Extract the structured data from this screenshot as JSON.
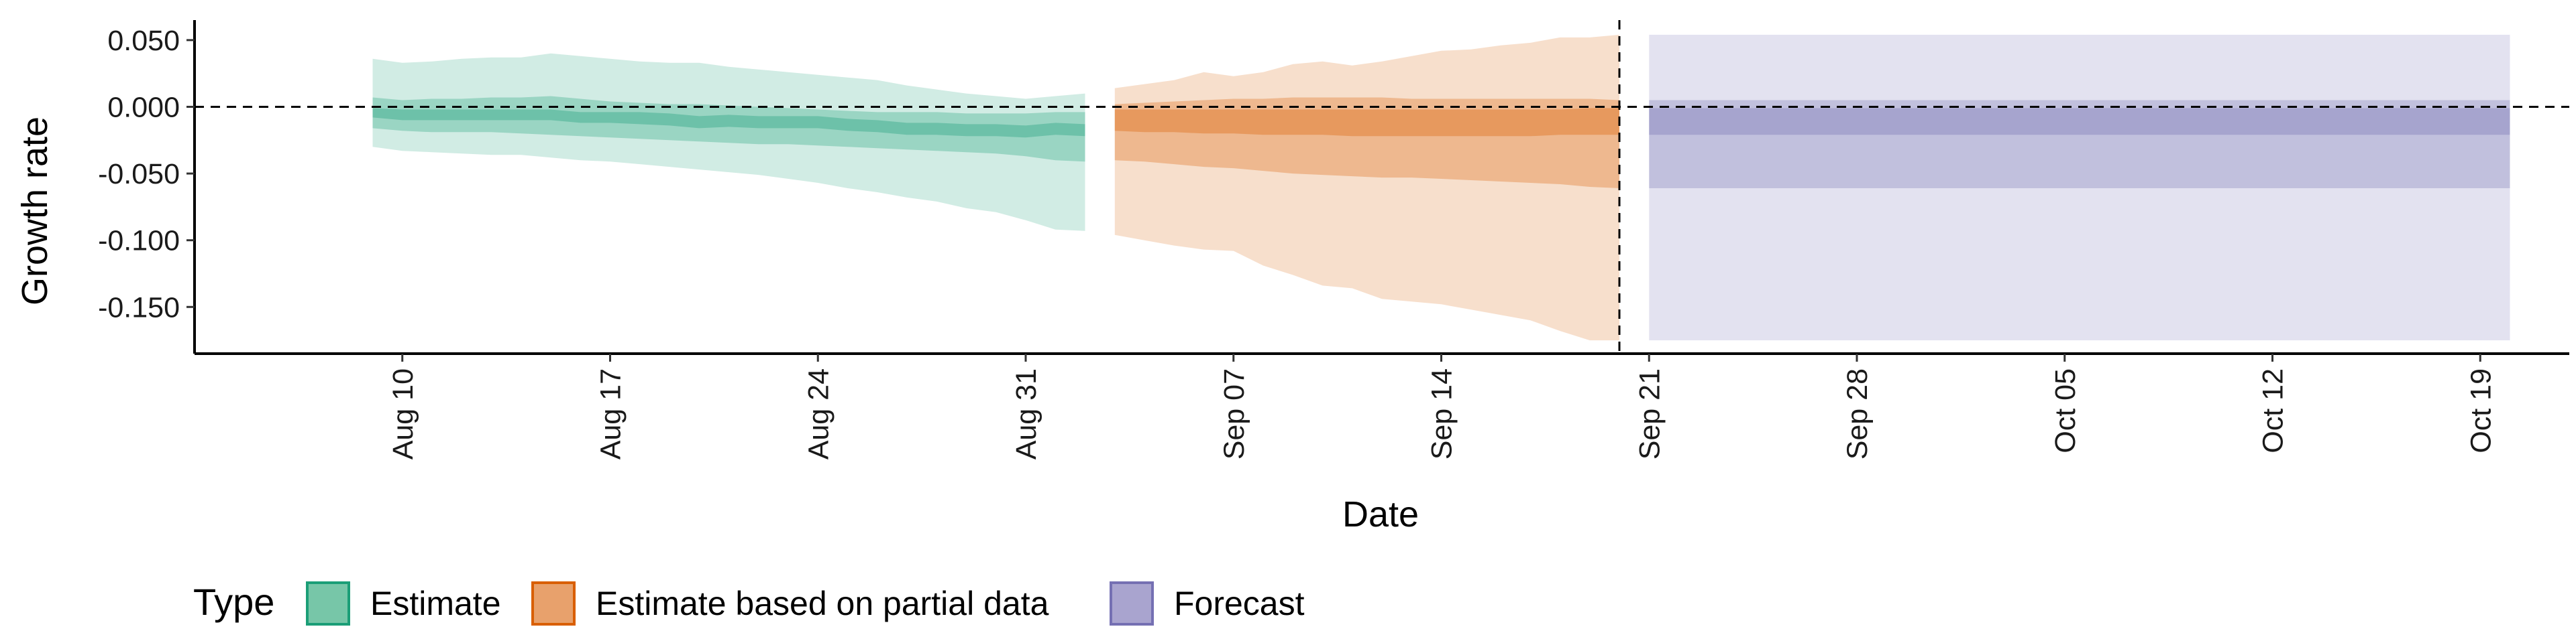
{
  "chart_data": {
    "type": "area",
    "xlabel": "Date",
    "ylabel": "Growth rate",
    "x_type": "date",
    "xlim": [
      "2020-08-03",
      "2020-10-22"
    ],
    "ylim": [
      -0.185,
      0.065
    ],
    "x_ticks": [
      {
        "date": "2020-08-10",
        "label": "Aug 10"
      },
      {
        "date": "2020-08-17",
        "label": "Aug 17"
      },
      {
        "date": "2020-08-24",
        "label": "Aug 24"
      },
      {
        "date": "2020-08-31",
        "label": "Aug 31"
      },
      {
        "date": "2020-09-07",
        "label": "Sep 07"
      },
      {
        "date": "2020-09-14",
        "label": "Sep 14"
      },
      {
        "date": "2020-09-21",
        "label": "Sep 21"
      },
      {
        "date": "2020-09-28",
        "label": "Sep 28"
      },
      {
        "date": "2020-10-05",
        "label": "Oct 05"
      },
      {
        "date": "2020-10-12",
        "label": "Oct 12"
      },
      {
        "date": "2020-10-19",
        "label": "Oct 19"
      }
    ],
    "y_ticks": [
      {
        "value": 0.05,
        "label": "0.050"
      },
      {
        "value": 0.0,
        "label": "0.000"
      },
      {
        "value": -0.05,
        "label": "-0.050"
      },
      {
        "value": -0.1,
        "label": "-0.100"
      },
      {
        "value": -0.15,
        "label": "-0.150"
      }
    ],
    "reference_lines": {
      "horizontal_y": 0.0,
      "vertical_x": "2020-09-20"
    },
    "grid": false,
    "legend": {
      "title": "Type",
      "position": "bottom",
      "entries": [
        {
          "label": "Estimate",
          "fill": "#77c6a8",
          "stroke": "#1b9e77"
        },
        {
          "label": "Estimate based on partial data",
          "fill": "#e8a16c",
          "stroke": "#d95f02"
        },
        {
          "label": "Forecast",
          "fill": "#a9a4cf",
          "stroke": "#7570b3"
        }
      ]
    },
    "series": [
      {
        "name": "Estimate",
        "color": "#1b9e77",
        "x": [
          "2020-08-09",
          "2020-08-10",
          "2020-08-11",
          "2020-08-12",
          "2020-08-13",
          "2020-08-14",
          "2020-08-15",
          "2020-08-16",
          "2020-08-17",
          "2020-08-18",
          "2020-08-19",
          "2020-08-20",
          "2020-08-21",
          "2020-08-22",
          "2020-08-23",
          "2020-08-24",
          "2020-08-25",
          "2020-08-26",
          "2020-08-27",
          "2020-08-28",
          "2020-08-29",
          "2020-08-30",
          "2020-08-31",
          "2020-09-01",
          "2020-09-02"
        ],
        "lower90": [
          -0.03,
          -0.033,
          -0.034,
          -0.035,
          -0.036,
          -0.036,
          -0.038,
          -0.04,
          -0.041,
          -0.043,
          -0.045,
          -0.047,
          -0.049,
          -0.051,
          -0.054,
          -0.057,
          -0.061,
          -0.064,
          -0.068,
          -0.071,
          -0.076,
          -0.079,
          -0.085,
          -0.092,
          -0.093
        ],
        "upper90": [
          0.036,
          0.033,
          0.034,
          0.036,
          0.037,
          0.037,
          0.04,
          0.038,
          0.036,
          0.034,
          0.033,
          0.033,
          0.03,
          0.028,
          0.026,
          0.024,
          0.022,
          0.02,
          0.016,
          0.013,
          0.01,
          0.008,
          0.006,
          0.008,
          0.01
        ],
        "lower50": [
          -0.016,
          -0.018,
          -0.019,
          -0.019,
          -0.019,
          -0.02,
          -0.021,
          -0.022,
          -0.023,
          -0.024,
          -0.025,
          -0.026,
          -0.027,
          -0.028,
          -0.028,
          -0.029,
          -0.03,
          -0.031,
          -0.032,
          -0.033,
          -0.034,
          -0.035,
          -0.037,
          -0.04,
          -0.041
        ],
        "upper50": [
          0.007,
          0.005,
          0.006,
          0.006,
          0.007,
          0.007,
          0.008,
          0.006,
          0.004,
          0.003,
          0.002,
          0.002,
          0.001,
          0.0,
          -0.001,
          -0.002,
          -0.003,
          -0.004,
          -0.004,
          -0.004,
          -0.005,
          -0.005,
          -0.005,
          -0.004,
          -0.004
        ],
        "lower20": [
          -0.008,
          -0.01,
          -0.01,
          -0.01,
          -0.01,
          -0.01,
          -0.01,
          -0.012,
          -0.012,
          -0.013,
          -0.014,
          -0.016,
          -0.015,
          -0.016,
          -0.016,
          -0.016,
          -0.018,
          -0.019,
          -0.021,
          -0.021,
          -0.022,
          -0.022,
          -0.023,
          -0.021,
          -0.022
        ],
        "upper20": [
          -0.001,
          -0.002,
          -0.002,
          -0.002,
          -0.002,
          -0.002,
          -0.002,
          -0.004,
          -0.004,
          -0.004,
          -0.005,
          -0.007,
          -0.006,
          -0.007,
          -0.007,
          -0.007,
          -0.009,
          -0.01,
          -0.012,
          -0.012,
          -0.013,
          -0.013,
          -0.014,
          -0.012,
          -0.013
        ]
      },
      {
        "name": "Estimate based on partial data",
        "color": "#d95f02",
        "x": [
          "2020-09-03",
          "2020-09-04",
          "2020-09-05",
          "2020-09-06",
          "2020-09-07",
          "2020-09-08",
          "2020-09-09",
          "2020-09-10",
          "2020-09-11",
          "2020-09-12",
          "2020-09-13",
          "2020-09-14",
          "2020-09-15",
          "2020-09-16",
          "2020-09-17",
          "2020-09-18",
          "2020-09-19",
          "2020-09-20"
        ],
        "lower90": [
          -0.096,
          -0.1,
          -0.104,
          -0.107,
          -0.108,
          -0.119,
          -0.126,
          -0.134,
          -0.136,
          -0.144,
          -0.146,
          -0.148,
          -0.152,
          -0.156,
          -0.16,
          -0.168,
          -0.175,
          -0.175
        ],
        "upper90": [
          0.014,
          0.017,
          0.02,
          0.026,
          0.023,
          0.026,
          0.032,
          0.034,
          0.031,
          0.034,
          0.038,
          0.042,
          0.043,
          0.046,
          0.048,
          0.052,
          0.052,
          0.054
        ],
        "lower50": [
          -0.04,
          -0.041,
          -0.043,
          -0.045,
          -0.046,
          -0.048,
          -0.05,
          -0.051,
          -0.052,
          -0.053,
          -0.053,
          -0.054,
          -0.055,
          -0.056,
          -0.057,
          -0.058,
          -0.06,
          -0.061
        ],
        "upper50": [
          0.002,
          0.003,
          0.004,
          0.005,
          0.006,
          0.006,
          0.007,
          0.007,
          0.007,
          0.007,
          0.006,
          0.006,
          0.006,
          0.006,
          0.006,
          0.006,
          0.006,
          0.005
        ],
        "lower20": [
          -0.018,
          -0.019,
          -0.019,
          -0.02,
          -0.02,
          -0.021,
          -0.021,
          -0.021,
          -0.022,
          -0.022,
          -0.022,
          -0.022,
          -0.022,
          -0.022,
          -0.022,
          -0.021,
          -0.021,
          -0.021
        ],
        "upper20": [
          -0.002,
          -0.002,
          -0.002,
          -0.002,
          -0.002,
          -0.002,
          -0.002,
          -0.002,
          -0.002,
          -0.002,
          -0.002,
          -0.002,
          -0.002,
          -0.002,
          -0.002,
          -0.002,
          -0.001,
          -0.001
        ]
      },
      {
        "name": "Forecast",
        "color": "#7570b3",
        "x": [
          "2020-09-21",
          "2020-10-20"
        ],
        "lower90": [
          -0.175,
          -0.175
        ],
        "upper90": [
          0.054,
          0.054
        ],
        "lower50": [
          -0.061,
          -0.061
        ],
        "upper50": [
          0.005,
          0.005
        ],
        "lower20": [
          -0.021,
          -0.021
        ],
        "upper20": [
          -0.001,
          -0.001
        ]
      }
    ]
  }
}
